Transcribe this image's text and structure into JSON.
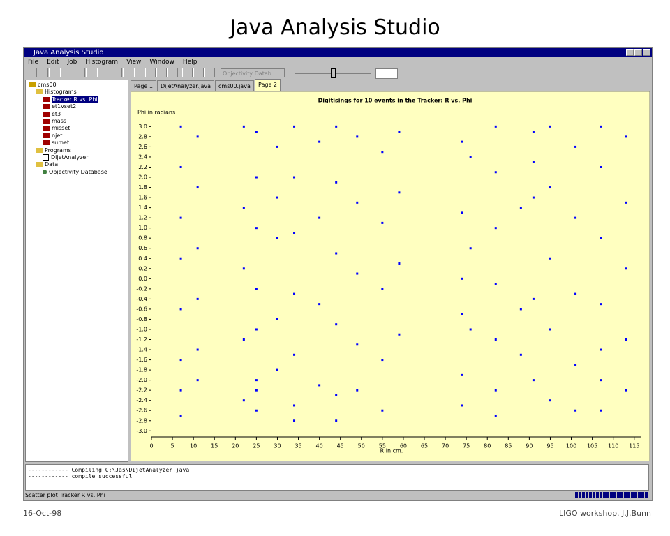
{
  "slide": {
    "title": "Java Analysis Studio",
    "footer_left": "16-Oct-98",
    "footer_right": "LIGO workshop. J.J.Bunn"
  },
  "window": {
    "title": "Java Analysis Studio",
    "menus": [
      "File",
      "Edit",
      "Job",
      "Histogram",
      "View",
      "Window",
      "Help"
    ],
    "combo": "Objectivity Datab..."
  },
  "tree": {
    "nodes": [
      {
        "label": "cms00",
        "level": 0
      },
      {
        "label": "Histograms",
        "level": 1
      },
      {
        "label": "Tracker R vs. Phi",
        "level": 2,
        "selected": true
      },
      {
        "label": "et1vset2",
        "level": 2
      },
      {
        "label": "et3",
        "level": 2
      },
      {
        "label": "mass",
        "level": 2
      },
      {
        "label": "misset",
        "level": 2
      },
      {
        "label": "njet",
        "level": 2
      },
      {
        "label": "sumet",
        "level": 2
      },
      {
        "label": "Programs",
        "level": 1
      },
      {
        "label": "DijetAnalyzer",
        "level": 2
      },
      {
        "label": "Data",
        "level": 1
      },
      {
        "label": "Objectivity Database",
        "level": 2
      }
    ]
  },
  "tabs": [
    "Page 1",
    "DijetAnalyzer.java",
    "cms00.java",
    "Page 2"
  ],
  "console": [
    "------------ Compiling C:\\Jas\\DijetAnalyzer.java",
    "------------ compile successful"
  ],
  "status": "Scatter plot Tracker R vs. Phi",
  "chart_data": {
    "type": "scatter",
    "title": "Digitisings for 10 events in the Tracker: R vs. Phi",
    "y_label": "Phi in radians",
    "x_label": "R in cm.",
    "color": "#0000ff",
    "xlim": [
      0,
      116.7
    ],
    "ylim": [
      -3.12,
      3.17
    ],
    "xticks": [
      0,
      5,
      10,
      15,
      20,
      25,
      30,
      35,
      40,
      45,
      50,
      55,
      60,
      65,
      70,
      75,
      80,
      85,
      90,
      95,
      100,
      105,
      110,
      115
    ],
    "yticks": [
      {
        "value": -3,
        "label": "-3.0"
      },
      -2.8,
      -2.6,
      -2.4,
      -2.2,
      {
        "value": -2,
        "label": "-2.0"
      },
      -1.8,
      -1.6,
      -1.4,
      -1.2,
      {
        "value": -1,
        "label": "-1.0"
      },
      -0.8,
      -0.6,
      -0.4,
      -0.2,
      {
        "value": 0,
        "label": "0.0"
      },
      0.2,
      0.4,
      0.6,
      0.8,
      {
        "value": 1,
        "label": "1.0"
      },
      1.2,
      1.4,
      1.6,
      1.8,
      {
        "value": 2,
        "label": "2.0"
      },
      2.2,
      2.4,
      2.6,
      2.8,
      {
        "value": 3,
        "label": "3.0"
      }
    ],
    "x": [
      7,
      7,
      7,
      7,
      7,
      7,
      7,
      7,
      11,
      11,
      11,
      11,
      11,
      11,
      22,
      22,
      22,
      22,
      22,
      25,
      25,
      25,
      25,
      25,
      25,
      25,
      25,
      30,
      30,
      30,
      30,
      30,
      34,
      34,
      34,
      34,
      34,
      34,
      34,
      40,
      40,
      40,
      40,
      44,
      44,
      44,
      44,
      44,
      44,
      49,
      49,
      49,
      49,
      49,
      55,
      55,
      55,
      55,
      55,
      59,
      59,
      59,
      59,
      74,
      74,
      74,
      74,
      74,
      74,
      76,
      76,
      76,
      82,
      82,
      82,
      82,
      82,
      82,
      82,
      88,
      88,
      88,
      91,
      91,
      91,
      91,
      91,
      95,
      95,
      95,
      95,
      95,
      101,
      101,
      101,
      101,
      101,
      107,
      107,
      107,
      107,
      107,
      107,
      107,
      113,
      113,
      113,
      113,
      113
    ],
    "values": [
      3.0,
      2.2,
      1.2,
      0.4,
      -0.6,
      -1.6,
      -2.2,
      -2.7,
      2.8,
      1.8,
      0.6,
      -0.4,
      -1.4,
      -2.0,
      3.0,
      1.4,
      0.2,
      -1.2,
      -2.4,
      2.9,
      2.0,
      1.0,
      -0.2,
      -1.0,
      -2.0,
      -2.2,
      -2.6,
      2.6,
      1.6,
      0.8,
      -0.8,
      -1.8,
      3.0,
      2.0,
      0.9,
      -0.3,
      -1.5,
      -2.5,
      -2.8,
      2.7,
      1.2,
      -0.5,
      -2.1,
      3.0,
      1.9,
      0.5,
      -0.9,
      -2.3,
      -2.8,
      2.8,
      1.5,
      0.1,
      -1.3,
      -2.2,
      2.5,
      1.1,
      -0.2,
      -1.6,
      -2.6,
      2.9,
      1.7,
      0.3,
      -1.1,
      2.7,
      1.3,
      0.0,
      -0.7,
      -1.9,
      -2.5,
      2.4,
      0.6,
      -1.0,
      3.0,
      2.1,
      1.0,
      -0.1,
      -1.2,
      -2.2,
      -2.7,
      1.4,
      -0.6,
      -1.5,
      2.9,
      2.3,
      1.6,
      -0.4,
      -2.0,
      3.0,
      1.8,
      0.4,
      -1.0,
      -2.4,
      2.6,
      1.2,
      -0.3,
      -1.7,
      -2.6,
      3.0,
      2.2,
      0.8,
      -0.5,
      -1.4,
      -2.0,
      -2.6,
      2.8,
      1.5,
      0.2,
      -1.2,
      -2.2
    ]
  }
}
